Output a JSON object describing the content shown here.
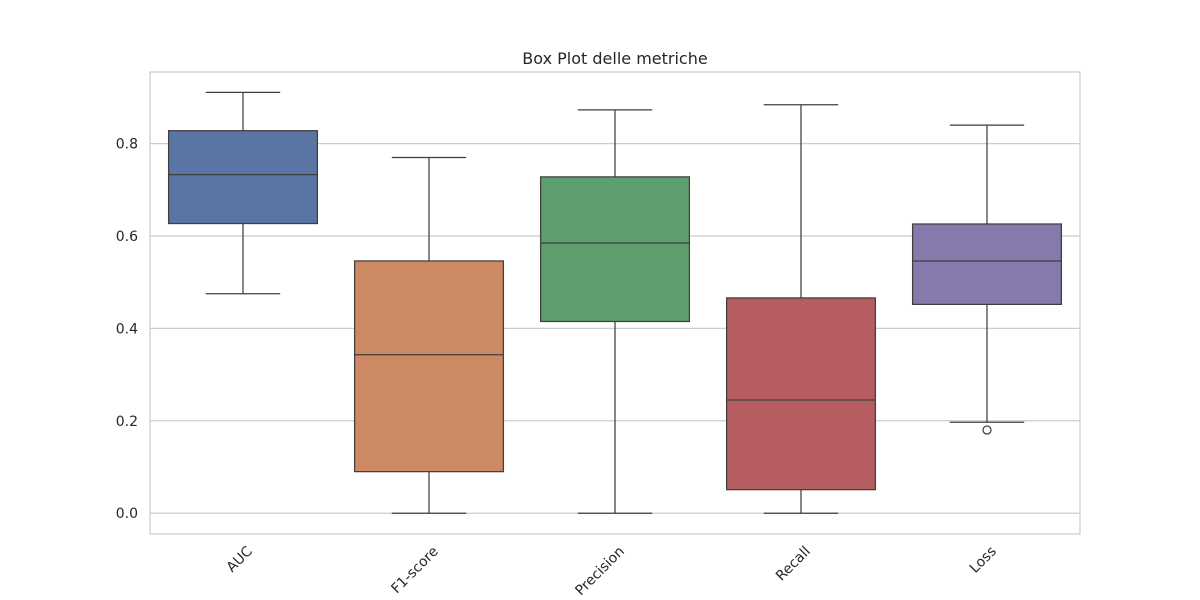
{
  "chart_data": {
    "type": "box",
    "title": "Box Plot delle metriche",
    "xlabel": "",
    "ylabel": "",
    "ylim": [
      -0.045,
      0.955
    ],
    "yticks": [
      0.0,
      0.2,
      0.4,
      0.6,
      0.8
    ],
    "ytick_labels": [
      "0.0",
      "0.2",
      "0.4",
      "0.6",
      "0.8"
    ],
    "grid": "horizontal",
    "categories": [
      "AUC",
      "F1-score",
      "Precision",
      "Recall",
      "Loss"
    ],
    "boxes": [
      {
        "category": "AUC",
        "whisker_low": 0.475,
        "q1": 0.627,
        "median": 0.733,
        "q3": 0.828,
        "whisker_high": 0.911,
        "outliers": [],
        "color": "#5875a4"
      },
      {
        "category": "F1-score",
        "whisker_low": 0.0,
        "q1": 0.09,
        "median": 0.343,
        "q3": 0.546,
        "whisker_high": 0.77,
        "outliers": [],
        "color": "#cc8963"
      },
      {
        "category": "Precision",
        "whisker_low": 0.0,
        "q1": 0.415,
        "median": 0.585,
        "q3": 0.728,
        "whisker_high": 0.873,
        "outliers": [],
        "color": "#5f9e6e"
      },
      {
        "category": "Recall",
        "whisker_low": 0.0,
        "q1": 0.051,
        "median": 0.245,
        "q3": 0.466,
        "whisker_high": 0.884,
        "outliers": [],
        "color": "#b55d60"
      },
      {
        "category": "Loss",
        "whisker_low": 0.197,
        "q1": 0.452,
        "median": 0.546,
        "q3": 0.626,
        "whisker_high": 0.84,
        "outliers": [
          0.18
        ],
        "color": "#857aab"
      }
    ]
  }
}
